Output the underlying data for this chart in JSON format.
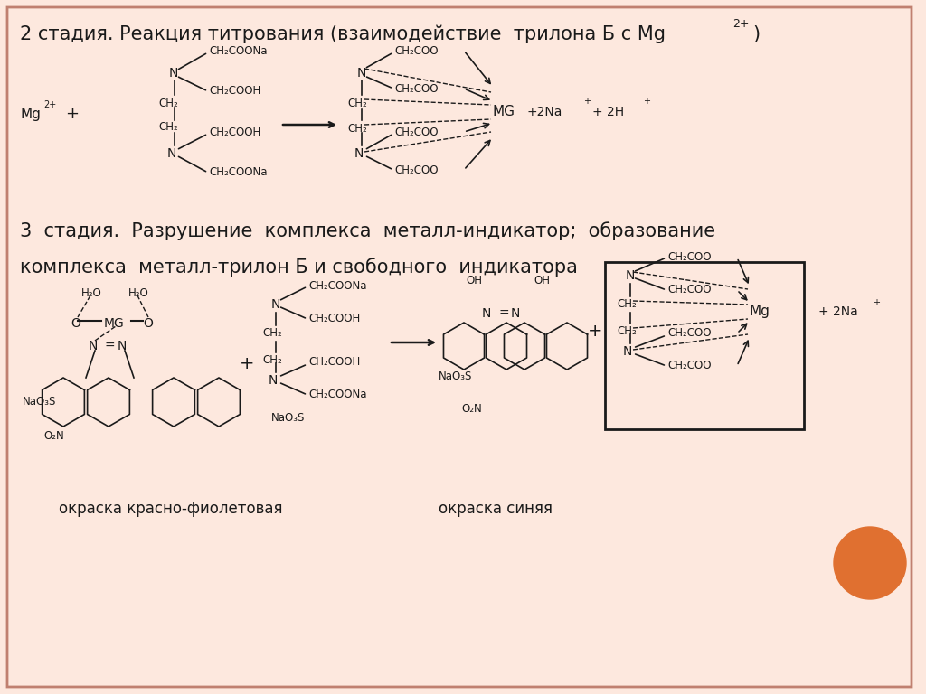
{
  "bg_color": "#fde8de",
  "title1": "2 стадия. Реакция титрования (взаимодействие  трилона Б с Mg",
  "title1_super": "2+",
  "title1_end": ")",
  "title2_line1": "3  стадия.  Разрушение  комплекса  металл-индикатор;  образование",
  "title2_line2": "комплекса  металл-трилон Б и свободного  индикатора",
  "label_okraska1": "окраска красно-фиолетовая",
  "label_okraska2": "окраска синяя",
  "orange_circle_color": "#e07030",
  "text_color": "#1a1a1a",
  "border_color": "#c08070",
  "font_size_title": 15,
  "font_size_label": 12,
  "font_size_chem": 10,
  "font_size_small": 8.5
}
